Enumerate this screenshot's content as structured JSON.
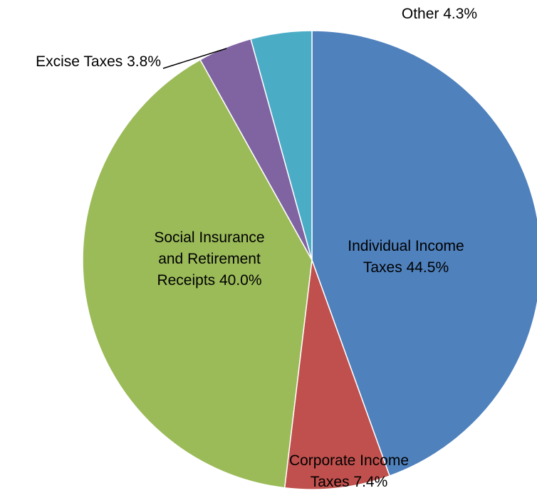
{
  "chart_data": {
    "type": "pie",
    "start_angle_deg": 0,
    "direction": "clockwise",
    "slices": [
      {
        "label": "Individual Income Taxes",
        "value": 44.5,
        "display": [
          "Individual Income",
          "Taxes 44.5%"
        ],
        "color": "#4F81BD"
      },
      {
        "label": "Corporate Income Taxes",
        "value": 7.4,
        "display": [
          "Corporate Income",
          "Taxes 7.4%"
        ],
        "color": "#C0504D"
      },
      {
        "label": "Social Insurance and Retirement Receipts",
        "value": 40.0,
        "display": [
          "Social Insurance",
          "and Retirement",
          "Receipts 40.0%"
        ],
        "color": "#9BBB59"
      },
      {
        "label": "Excise Taxes",
        "value": 3.8,
        "display": [
          "Excise Taxes 3.8%"
        ],
        "color": "#8064A2"
      },
      {
        "label": "Other",
        "value": 4.3,
        "display": [
          "Other 4.3%"
        ],
        "color": "#4BACC6"
      }
    ]
  }
}
